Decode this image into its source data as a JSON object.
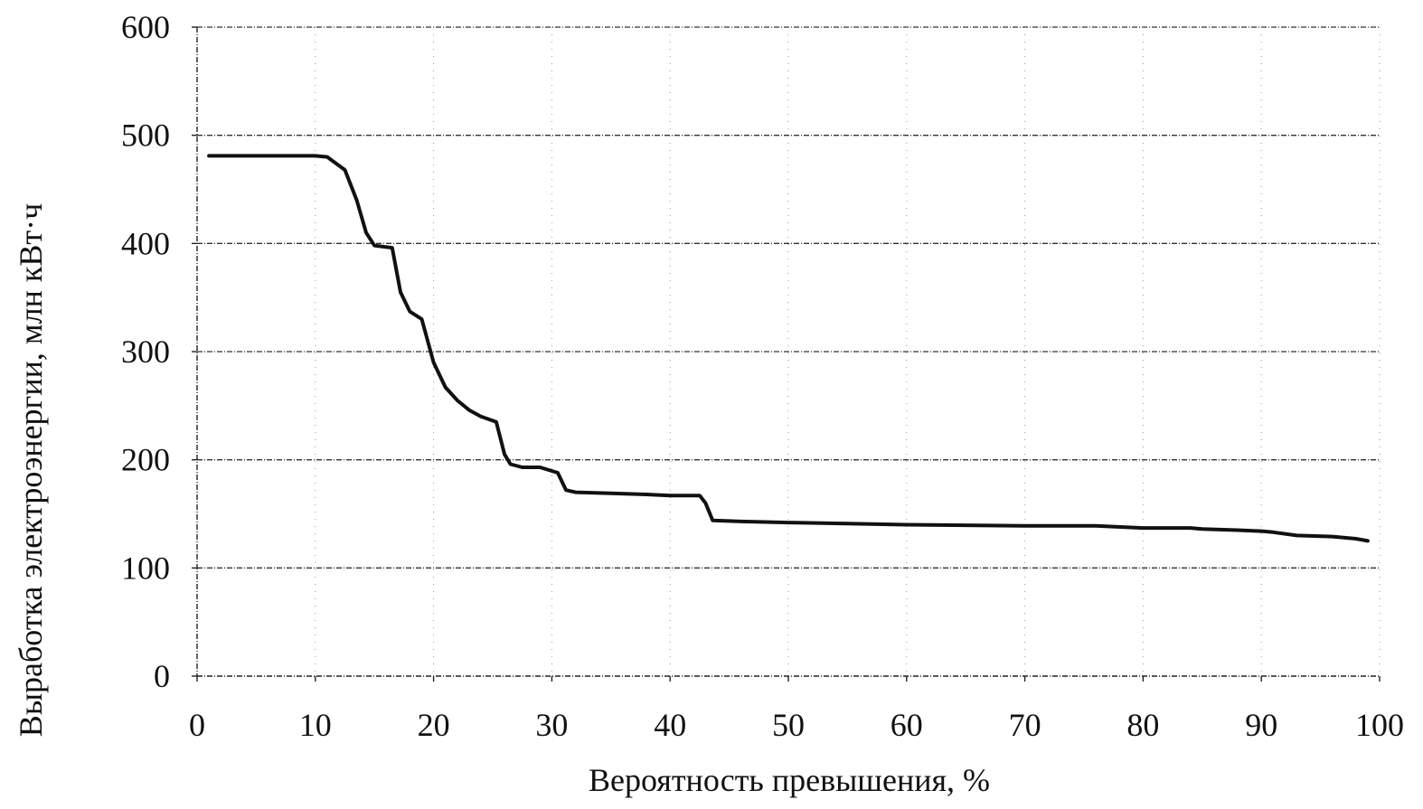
{
  "chart_data": {
    "type": "line",
    "xlabel": "Вероятность превышения, %",
    "ylabel": "Выработка электроэнергии, млн кВт·ч",
    "xlim": [
      0,
      100
    ],
    "ylim": [
      0,
      600
    ],
    "x_ticks": [
      "0",
      "10",
      "20",
      "30",
      "40",
      "50",
      "60",
      "70",
      "80",
      "90",
      "100"
    ],
    "y_ticks": [
      "0",
      "100",
      "200",
      "300",
      "400",
      "500",
      "600"
    ],
    "grid": true,
    "legend": "none",
    "series_color": "#111111",
    "series": [
      {
        "x": [
          1,
          5,
          10,
          11,
          12.5,
          13.5,
          14.3,
          15,
          16.5,
          17.2,
          18,
          19,
          20,
          21,
          22,
          23,
          24,
          25.3,
          26,
          26.5,
          27.5,
          29,
          30.5,
          31.2,
          32,
          35,
          38,
          40,
          42.5,
          43,
          43.6,
          46,
          50,
          55,
          60,
          70,
          76,
          80,
          84,
          85,
          88,
          90,
          91,
          93,
          96,
          98,
          99
        ],
        "y": [
          481,
          481,
          481,
          480,
          468,
          440,
          410,
          398,
          396,
          355,
          337,
          330,
          290,
          267,
          255,
          246,
          240,
          235,
          205,
          196,
          193,
          193,
          188,
          172,
          170,
          169,
          168,
          167,
          167,
          160,
          144,
          143,
          142,
          141,
          140,
          139,
          139,
          137,
          137,
          136,
          135,
          134,
          133,
          130,
          129,
          127,
          125
        ]
      }
    ]
  }
}
